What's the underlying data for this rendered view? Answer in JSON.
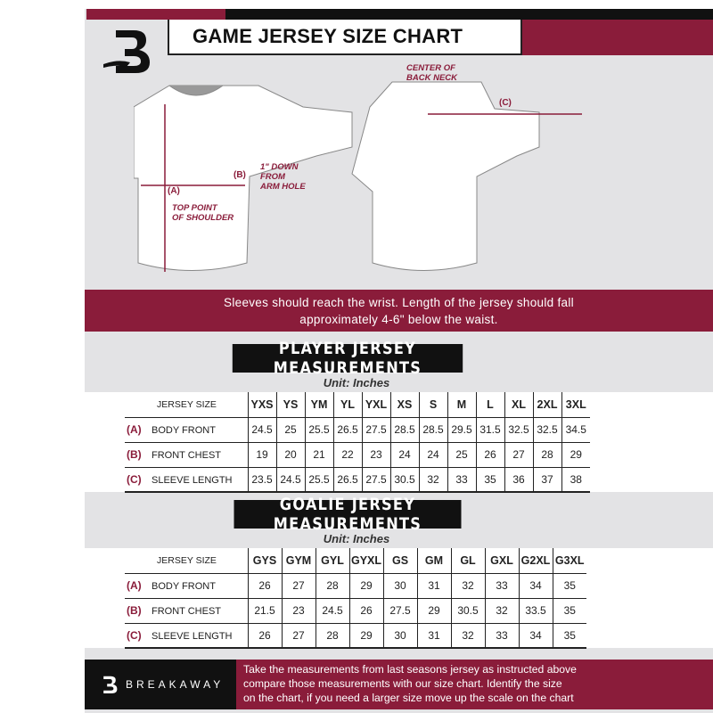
{
  "header": {
    "title": "GAME JERSEY SIZE CHART",
    "brand_color": "#8a1c3a"
  },
  "diagram": {
    "label_a": "(A)",
    "label_b": "(B)",
    "label_c": "(C)",
    "note_a": [
      "TOP POINT",
      "OF SHOULDER"
    ],
    "note_b": [
      "1\" DOWN",
      "FROM",
      "ARM HOLE"
    ],
    "note_c": [
      "CENTER OF",
      "BACK NECK"
    ]
  },
  "banner": {
    "lines": [
      "Sleeves should reach the wrist. Length of the jersey should fall",
      "approximately 4-6\" below the waist."
    ]
  },
  "player": {
    "title": "PLAYER JERSEY MEASUREMENTS",
    "unit": "Unit: Inches",
    "size_header": "JERSEY SIZE",
    "sizes": [
      "YXS",
      "YS",
      "YM",
      "YL",
      "YXL",
      "XS",
      "S",
      "M",
      "L",
      "XL",
      "2XL",
      "3XL"
    ],
    "rows": [
      {
        "code": "(A)",
        "label": "BODY FRONT",
        "values": [
          "24.5",
          "25",
          "25.5",
          "26.5",
          "27.5",
          "28.5",
          "28.5",
          "29.5",
          "31.5",
          "32.5",
          "32.5",
          "34.5"
        ]
      },
      {
        "code": "(B)",
        "label": "FRONT CHEST",
        "values": [
          "19",
          "20",
          "21",
          "22",
          "23",
          "24",
          "24",
          "25",
          "26",
          "27",
          "28",
          "29"
        ]
      },
      {
        "code": "(C)",
        "label": "SLEEVE LENGTH",
        "values": [
          "23.5",
          "24.5",
          "25.5",
          "26.5",
          "27.5",
          "30.5",
          "32",
          "33",
          "35",
          "36",
          "37",
          "38"
        ]
      }
    ]
  },
  "goalie": {
    "title": "GOALIE JERSEY MEASUREMENTS",
    "unit": "Unit: Inches",
    "size_header": "JERSEY SIZE",
    "sizes": [
      "GYS",
      "GYM",
      "GYL",
      "GYXL",
      "GS",
      "GM",
      "GL",
      "GXL",
      "G2XL",
      "G3XL"
    ],
    "rows": [
      {
        "code": "(A)",
        "label": "BODY FRONT",
        "values": [
          "26",
          "27",
          "28",
          "29",
          "30",
          "31",
          "32",
          "33",
          "34",
          "35"
        ]
      },
      {
        "code": "(B)",
        "label": "FRONT CHEST",
        "values": [
          "21.5",
          "23",
          "24.5",
          "26",
          "27.5",
          "29",
          "30.5",
          "32",
          "33.5",
          "35"
        ]
      },
      {
        "code": "(C)",
        "label": "SLEEVE LENGTH",
        "values": [
          "26",
          "27",
          "28",
          "29",
          "30",
          "31",
          "32",
          "33",
          "34",
          "35"
        ]
      }
    ]
  },
  "footer": {
    "brand": "BREAKAWAY",
    "lines": [
      "Take the measurements from last seasons jersey as instructed above",
      "compare those measurements  with our size chart. Identify the size",
      "on the chart, if you need a larger size move up the scale on the chart"
    ]
  }
}
